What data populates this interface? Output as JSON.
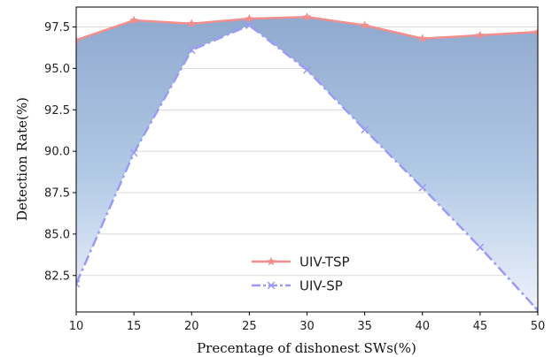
{
  "chart_data": {
    "type": "line",
    "xlabel": "Precentage of dishonest SWs(%)",
    "ylabel": "Detection Rate(%)",
    "x": [
      10,
      15,
      20,
      25,
      30,
      35,
      40,
      45,
      50
    ],
    "xlim": [
      10,
      50
    ],
    "ylim": [
      80.3,
      98.7
    ],
    "x_ticks": [
      "10",
      "15",
      "20",
      "25",
      "30",
      "35",
      "40",
      "45",
      "50"
    ],
    "y_ticks": [
      "82.5",
      "85.0",
      "87.5",
      "90.0",
      "92.5",
      "95.0",
      "97.5"
    ],
    "grid": "horizontal",
    "legend_position": "bottom-center",
    "fill_between_series": true,
    "series": [
      {
        "name": "UIV-TSP",
        "values": [
          96.7,
          97.9,
          97.7,
          98.0,
          98.1,
          97.6,
          96.8,
          97.0,
          97.2
        ],
        "color": "#f28e8e",
        "marker": "star",
        "linestyle": "solid"
      },
      {
        "name": "UIV-SP",
        "values": [
          82.0,
          89.9,
          96.1,
          97.6,
          94.9,
          91.3,
          87.8,
          84.2,
          80.4
        ],
        "color": "#9b9bf5",
        "marker": "x",
        "linestyle": "dashdot"
      }
    ]
  }
}
